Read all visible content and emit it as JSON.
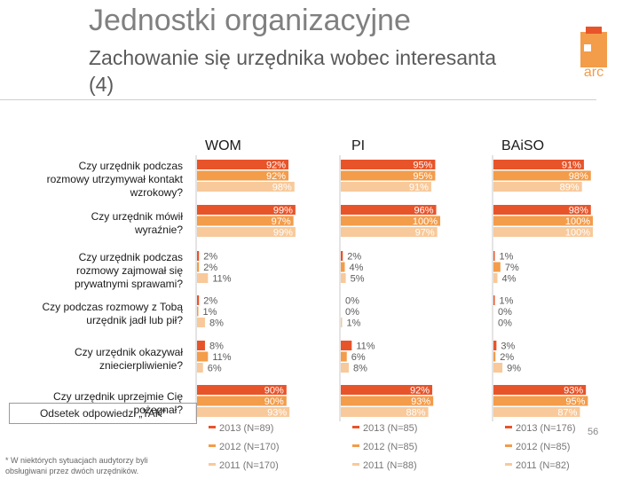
{
  "header": {
    "title": "Jednostki organizacyjne",
    "subtitle": "Zachowanie się urzędnika wobec interesanta (4)"
  },
  "logo": {
    "text": "arc"
  },
  "legend_box": "Odsetek odpowiedzi „TAK\"",
  "footnote": "* W niektórych sytuacjach audytorzy byli obsługiwani przez dwóch urzędników.",
  "slide_number": "56",
  "colors": {
    "2013": "#e8542a",
    "2012": "#f39c4a",
    "2011": "#f8c99a",
    "grid": "#c8c8c8"
  },
  "chart_data": {
    "type": "bar",
    "orientation": "horizontal",
    "panels": [
      "WOM",
      "PI",
      "BAiSO"
    ],
    "xlim": [
      0,
      100
    ],
    "value_unit": "%",
    "categories": [
      "Czy urzędnik podczas rozmowy utrzymywał kontakt wzrokowy?",
      "Czy urzędnik mówił wyraźnie?",
      "Czy urzędnik podczas rozmowy zajmował się prywatnymi sprawami?",
      "Czy podczas rozmowy z Tobą urzędnik jadł lub pił?",
      "Czy urzędnik okazywał zniecierpliwienie?",
      "Czy urzędnik uprzejmie Cię pożegnał?"
    ],
    "series": [
      {
        "year": "2013",
        "values": {
          "WOM": [
            92,
            99,
            2,
            2,
            8,
            90
          ],
          "PI": [
            95,
            96,
            2,
            0,
            11,
            92
          ],
          "BAiSO": [
            91,
            98,
            1,
            1,
            3,
            93
          ]
        }
      },
      {
        "year": "2012",
        "values": {
          "WOM": [
            92,
            97,
            2,
            1,
            11,
            90
          ],
          "PI": [
            95,
            100,
            4,
            0,
            6,
            93
          ],
          "BAiSO": [
            98,
            100,
            7,
            0,
            2,
            95
          ]
        }
      },
      {
        "year": "2011",
        "values": {
          "WOM": [
            98,
            99,
            11,
            8,
            6,
            93
          ],
          "PI": [
            91,
            97,
            5,
            1,
            8,
            88
          ],
          "BAiSO": [
            89,
            100,
            4,
            0,
            9,
            87
          ]
        }
      }
    ],
    "legend": {
      "WOM": [
        "2013 (N=89)",
        "2012 (N=170)",
        "2011 (N=170)"
      ],
      "PI": [
        "2013 (N=85)",
        "2012 (N=85)",
        "2011 (N=88)"
      ],
      "BAiSO": [
        "2013 (N=176)",
        "2012 (N=85)",
        "2011 (N=82)"
      ]
    }
  }
}
